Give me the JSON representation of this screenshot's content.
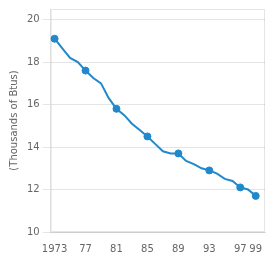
{
  "chart_data": {
    "type": "line",
    "ylabel": "(Thousands of Btus)",
    "x": [
      1973,
      1974,
      1975,
      1976,
      1977,
      1978,
      1979,
      1980,
      1981,
      1982,
      1983,
      1984,
      1985,
      1986,
      1987,
      1988,
      1989,
      1990,
      1991,
      1992,
      1993,
      1994,
      1995,
      1996,
      1997,
      1998,
      1999
    ],
    "series": [
      {
        "type": "line",
        "color": "#2288cc",
        "marker": "none",
        "values": [
          19.1,
          18.65,
          18.2,
          18.0,
          17.6,
          17.25,
          17.0,
          16.3,
          15.8,
          15.5,
          15.1,
          14.8,
          14.5,
          14.15,
          13.8,
          13.7,
          13.7,
          13.35,
          13.2,
          13.0,
          12.9,
          12.75,
          12.5,
          12.4,
          12.1,
          12.0,
          11.7
        ]
      },
      {
        "type": "scatter",
        "color": "#2288cc",
        "marker": "circle",
        "values": [
          19.1,
          null,
          null,
          null,
          17.6,
          null,
          null,
          null,
          15.8,
          null,
          null,
          null,
          14.5,
          null,
          null,
          null,
          13.7,
          null,
          null,
          null,
          12.9,
          null,
          null,
          null,
          12.1,
          null,
          11.7
        ]
      }
    ],
    "xlim": [
      1972.5,
      2000.2
    ],
    "ylim": [
      10.0,
      20.5
    ],
    "xticks": [
      1973,
      {
        "value": 1977,
        "label": "77"
      },
      {
        "value": 1981,
        "label": "81"
      },
      {
        "value": 1985,
        "label": "85"
      },
      {
        "value": 1989,
        "label": "89"
      },
      {
        "value": 1993,
        "label": "93"
      },
      {
        "value": 1997,
        "label": "97"
      },
      {
        "value": 1999,
        "label": "99"
      }
    ],
    "yticks": [
      10,
      12,
      14,
      16,
      18,
      20
    ],
    "grid": "y"
  }
}
